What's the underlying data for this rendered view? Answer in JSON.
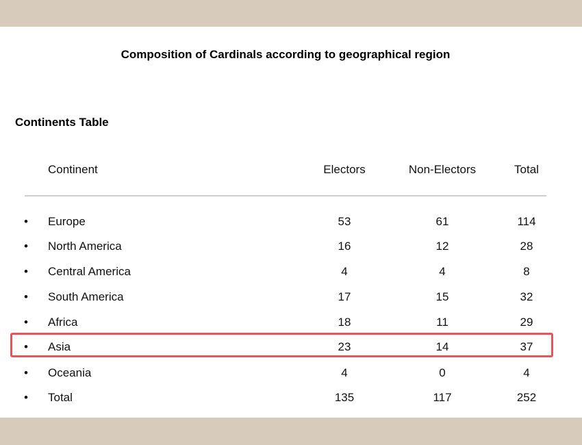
{
  "document": {
    "title": "Composition of Cardinals according to geographical region",
    "section_title": "Continents Table"
  },
  "table": {
    "headers": {
      "continent": "Continent",
      "electors": "Electors",
      "non_electors": "Non-Electors",
      "total": "Total"
    },
    "bullet": "•",
    "rows": [
      {
        "continent": "Europe",
        "electors": "53",
        "non_electors": "61",
        "total": "114"
      },
      {
        "continent": "North America",
        "electors": "16",
        "non_electors": "12",
        "total": "28"
      },
      {
        "continent": "Central America",
        "electors": "4",
        "non_electors": "4",
        "total": "8"
      },
      {
        "continent": "South America",
        "electors": "17",
        "non_electors": "15",
        "total": "32"
      },
      {
        "continent": "Africa",
        "electors": "18",
        "non_electors": "11",
        "total": "29"
      },
      {
        "continent": "Asia",
        "electors": "23",
        "non_electors": "14",
        "total": "37"
      },
      {
        "continent": "Oceania",
        "electors": "4",
        "non_electors": "0",
        "total": "4"
      },
      {
        "continent": "Total",
        "electors": "135",
        "non_electors": "117",
        "total": "252"
      }
    ],
    "highlighted_row": "Asia"
  },
  "colors": {
    "background_band": "#d7cbbc",
    "highlight_border": "#e8545b",
    "divider": "#cfcfcf"
  }
}
